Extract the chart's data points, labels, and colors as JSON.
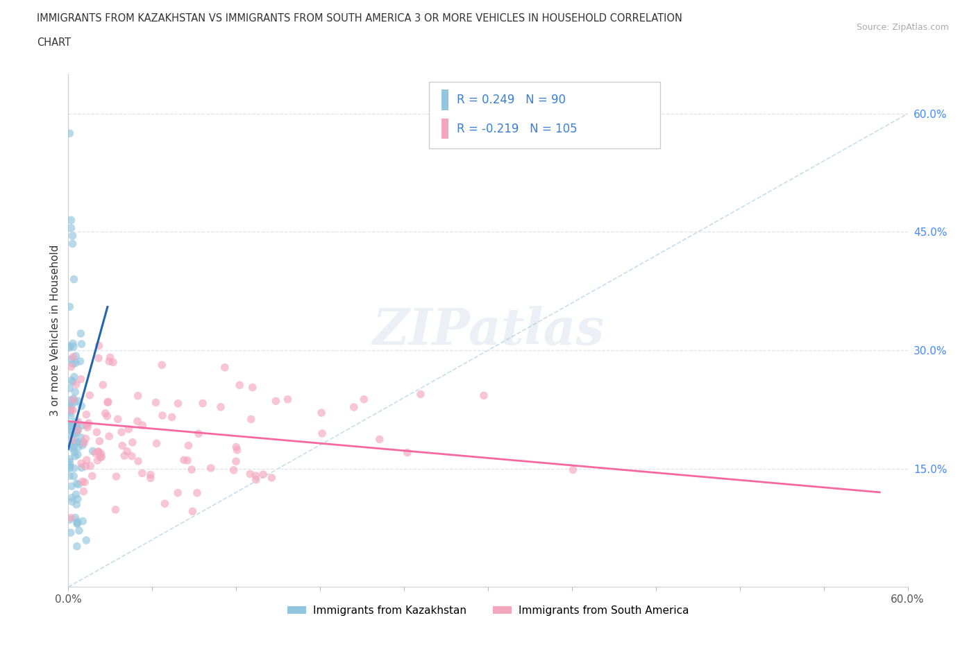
{
  "title_line1": "IMMIGRANTS FROM KAZAKHSTAN VS IMMIGRANTS FROM SOUTH AMERICA 3 OR MORE VEHICLES IN HOUSEHOLD CORRELATION",
  "title_line2": "CHART",
  "source": "Source: ZipAtlas.com",
  "ylabel": "3 or more Vehicles in Household",
  "yticks_right": [
    "15.0%",
    "30.0%",
    "45.0%",
    "60.0%"
  ],
  "yticks_right_vals": [
    0.15,
    0.3,
    0.45,
    0.6
  ],
  "legend_label1": "Immigrants from Kazakhstan",
  "legend_label2": "Immigrants from South America",
  "r1": 0.249,
  "n1": 90,
  "r2": -0.219,
  "n2": 105,
  "color_kaz": "#92c5de",
  "color_sa": "#f4a6be",
  "color_kaz_line": "#2166ac",
  "color_sa_line": "#f768a1",
  "color_diag": "#92c5de",
  "watermark": "ZIPatlas",
  "xlim": [
    0.0,
    0.6
  ],
  "ylim": [
    0.0,
    0.65
  ],
  "xtick_count": 11,
  "text_color_RN": "#3a7fd5",
  "text_color_label": "#333333"
}
